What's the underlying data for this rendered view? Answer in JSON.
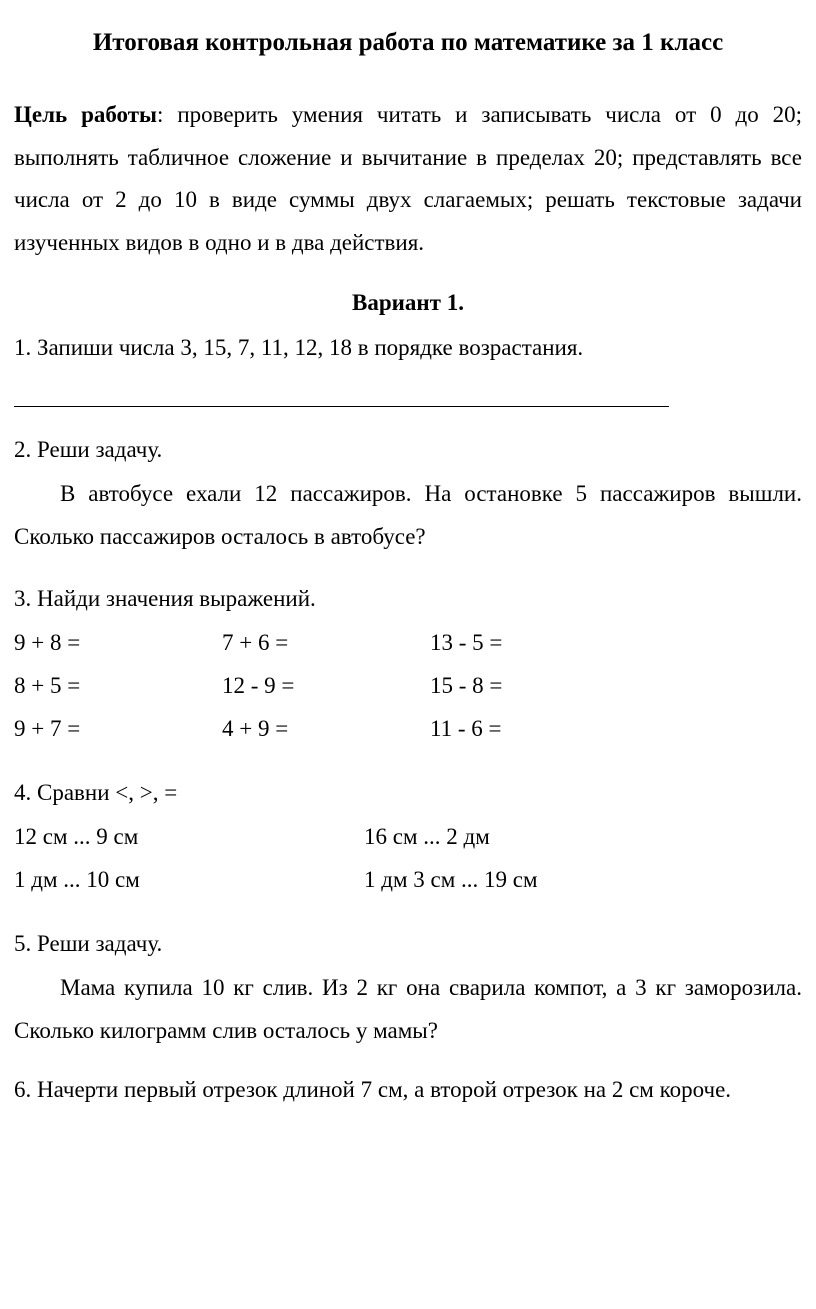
{
  "title": "Итоговая контрольная работа по математике за 1 класс",
  "purpose": {
    "label": "Цель работы",
    "text": ": проверить умения читать и записывать числа от 0 до 20; выполнять табличное сложение и вычитание в пределах 20; представлять все числа от 2 до 10 в виде суммы двух слагаемых; решать текстовые задачи изученных видов в одно  и в два действия."
  },
  "variant": "Вариант 1.",
  "task1": {
    "text": "1. Запиши числа 3, 15, 7, 11, 12, 18 в порядке возрастания."
  },
  "task2": {
    "heading": "2. Реши задачу.",
    "body": "В автобусе ехали 12 пассажиров. На остановке 5 пассажиров вышли. Сколько пассажиров осталось в автобусе?"
  },
  "task3": {
    "heading": "3. Найди значения выражений.",
    "rows": [
      [
        "9 + 8 =",
        "7 + 6 =",
        "13 - 5 ="
      ],
      [
        "8 + 5 =",
        "12 - 9 =",
        "15 - 8 ="
      ],
      [
        "9 + 7 =",
        "4 + 9 =",
        "11 - 6 ="
      ]
    ]
  },
  "task4": {
    "heading": "4. Сравни <,  >, =",
    "rows": [
      [
        "12 см ... 9 см",
        "16 см ... 2 дм"
      ],
      [
        "1 дм ... 10 см",
        "1 дм 3 см ... 19 см"
      ]
    ]
  },
  "task5": {
    "heading": "5. Реши задачу.",
    "body": "Мама купила 10 кг слив. Из 2 кг она сварила компот, а  3 кг заморозила. Сколько килограмм слив осталось у мамы?"
  },
  "task6": {
    "text": "6. Начерти первый отрезок длиной 7 см, а второй отрезок  на 2 см короче."
  }
}
